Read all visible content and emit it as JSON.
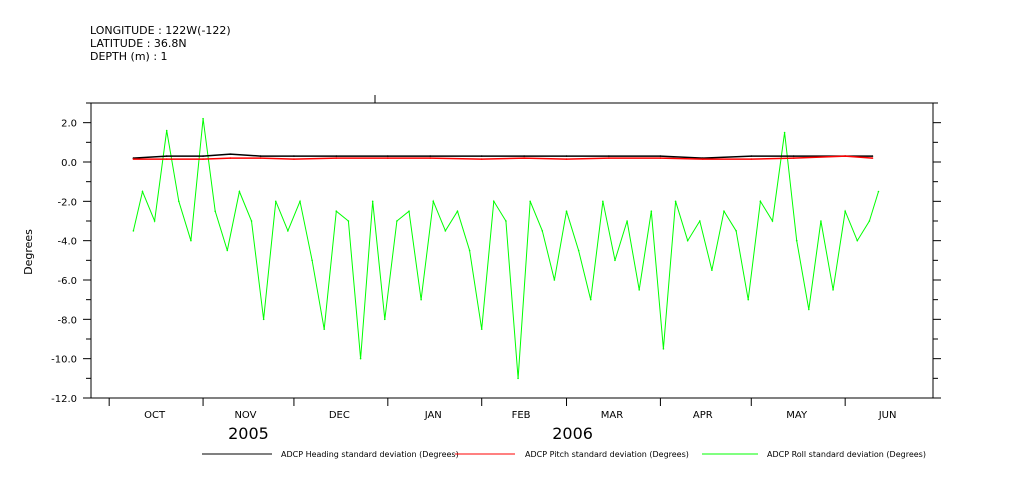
{
  "header": {
    "longitude": "LONGITUDE : 122W(-122)",
    "latitude": "LATITUDE : 36.8N",
    "depth": "DEPTH (m) : 1"
  },
  "chart_data": {
    "type": "line",
    "title": "",
    "ylabel": "Degrees",
    "xlabel": "",
    "ylim": [
      -12.0,
      3.0
    ],
    "y_ticks": [
      2.0,
      0.0,
      -2.0,
      -4.0,
      -6.0,
      -8.0,
      -10.0,
      -12.0
    ],
    "y_tick_labels": [
      "2.0",
      "0.0",
      "-2.0",
      "-4.0",
      "-6.0",
      "-8.0",
      "-10.0",
      "-12.0"
    ],
    "x_range": [
      "2005-09-25",
      "2006-06-30"
    ],
    "x_tick_labels": [
      "OCT",
      "NOV",
      "DEC",
      "JAN",
      "FEB",
      "MAR",
      "APR",
      "MAY",
      "JUN"
    ],
    "x_tick_label_dates": [
      "2005-10-16",
      "2005-11-15",
      "2005-12-16",
      "2006-01-16",
      "2006-02-14",
      "2006-03-16",
      "2006-04-15",
      "2006-05-16",
      "2006-06-15"
    ],
    "x_major_tick_dates": [
      "2005-10-01",
      "2005-11-01",
      "2005-12-01",
      "2006-01-01",
      "2006-02-01",
      "2006-03-01",
      "2006-04-01",
      "2006-05-01",
      "2006-06-01"
    ],
    "year_labels": [
      {
        "label": "2005",
        "date": "2005-11-16"
      },
      {
        "label": "2006",
        "date": "2006-03-03"
      }
    ],
    "grid": false,
    "legend_position": "bottom",
    "series": [
      {
        "name": "ADCP Heading standard deviation (Degrees)",
        "color": "#000000",
        "x": [
          "2005-10-09",
          "2005-10-20",
          "2005-11-01",
          "2005-11-10",
          "2005-11-20",
          "2005-12-01",
          "2005-12-15",
          "2006-01-01",
          "2006-01-15",
          "2006-02-01",
          "2006-02-15",
          "2006-03-01",
          "2006-03-15",
          "2006-04-01",
          "2006-04-15",
          "2006-05-01",
          "2006-05-15",
          "2006-06-01",
          "2006-06-10"
        ],
        "values": [
          0.2,
          0.3,
          0.3,
          0.4,
          0.3,
          0.3,
          0.3,
          0.3,
          0.3,
          0.3,
          0.3,
          0.3,
          0.3,
          0.3,
          0.2,
          0.3,
          0.3,
          0.3,
          0.3
        ]
      },
      {
        "name": "ADCP Pitch standard deviation (Degrees)",
        "color": "#ff0000",
        "x": [
          "2005-10-09",
          "2005-10-20",
          "2005-11-01",
          "2005-11-10",
          "2005-11-20",
          "2005-12-01",
          "2005-12-15",
          "2006-01-01",
          "2006-01-15",
          "2006-02-01",
          "2006-02-15",
          "2006-03-01",
          "2006-03-15",
          "2006-04-01",
          "2006-04-15",
          "2006-05-01",
          "2006-05-15",
          "2006-06-01",
          "2006-06-10"
        ],
        "values": [
          0.15,
          0.15,
          0.15,
          0.2,
          0.2,
          0.15,
          0.2,
          0.2,
          0.2,
          0.15,
          0.2,
          0.15,
          0.2,
          0.2,
          0.15,
          0.15,
          0.2,
          0.3,
          0.2
        ]
      },
      {
        "name": "ADCP Roll standard deviation (Degrees)",
        "color": "#00ff00",
        "x": [
          "2005-10-09",
          "2005-10-12",
          "2005-10-16",
          "2005-10-20",
          "2005-10-24",
          "2005-10-28",
          "2005-11-01",
          "2005-11-05",
          "2005-11-09",
          "2005-11-13",
          "2005-11-17",
          "2005-11-21",
          "2005-11-25",
          "2005-11-29",
          "2005-12-03",
          "2005-12-07",
          "2005-12-11",
          "2005-12-15",
          "2005-12-19",
          "2005-12-23",
          "2005-12-27",
          "2005-12-31",
          "2006-01-04",
          "2006-01-08",
          "2006-01-12",
          "2006-01-16",
          "2006-01-20",
          "2006-01-24",
          "2006-01-28",
          "2006-02-01",
          "2006-02-05",
          "2006-02-09",
          "2006-02-13",
          "2006-02-17",
          "2006-02-21",
          "2006-02-25",
          "2006-03-01",
          "2006-03-05",
          "2006-03-09",
          "2006-03-13",
          "2006-03-17",
          "2006-03-21",
          "2006-03-25",
          "2006-03-29",
          "2006-04-02",
          "2006-04-06",
          "2006-04-10",
          "2006-04-14",
          "2006-04-18",
          "2006-04-22",
          "2006-04-26",
          "2006-04-30",
          "2006-05-04",
          "2006-05-08",
          "2006-05-12",
          "2006-05-16",
          "2006-05-20",
          "2006-05-24",
          "2006-05-28",
          "2006-06-01",
          "2006-06-05",
          "2006-06-09",
          "2006-06-12"
        ],
        "values": [
          -3.5,
          -1.5,
          -3.0,
          1.6,
          -2.0,
          -4.0,
          2.2,
          -2.5,
          -4.5,
          -1.5,
          -3.0,
          -8.0,
          -2.0,
          -3.5,
          -2.0,
          -5.0,
          -8.5,
          -2.5,
          -3.0,
          -10.0,
          -2.0,
          -8.0,
          -3.0,
          -2.5,
          -7.0,
          -2.0,
          -3.5,
          -2.5,
          -4.5,
          -8.5,
          -2.0,
          -3.0,
          -11.0,
          -2.0,
          -3.5,
          -6.0,
          -2.5,
          -4.5,
          -7.0,
          -2.0,
          -5.0,
          -3.0,
          -6.5,
          -2.5,
          -9.5,
          -2.0,
          -4.0,
          -3.0,
          -5.5,
          -2.5,
          -3.5,
          -7.0,
          -2.0,
          -3.0,
          1.5,
          -4.0,
          -7.5,
          -3.0,
          -6.5,
          -2.5,
          -4.0,
          -3.0,
          -1.5
        ]
      }
    ]
  }
}
